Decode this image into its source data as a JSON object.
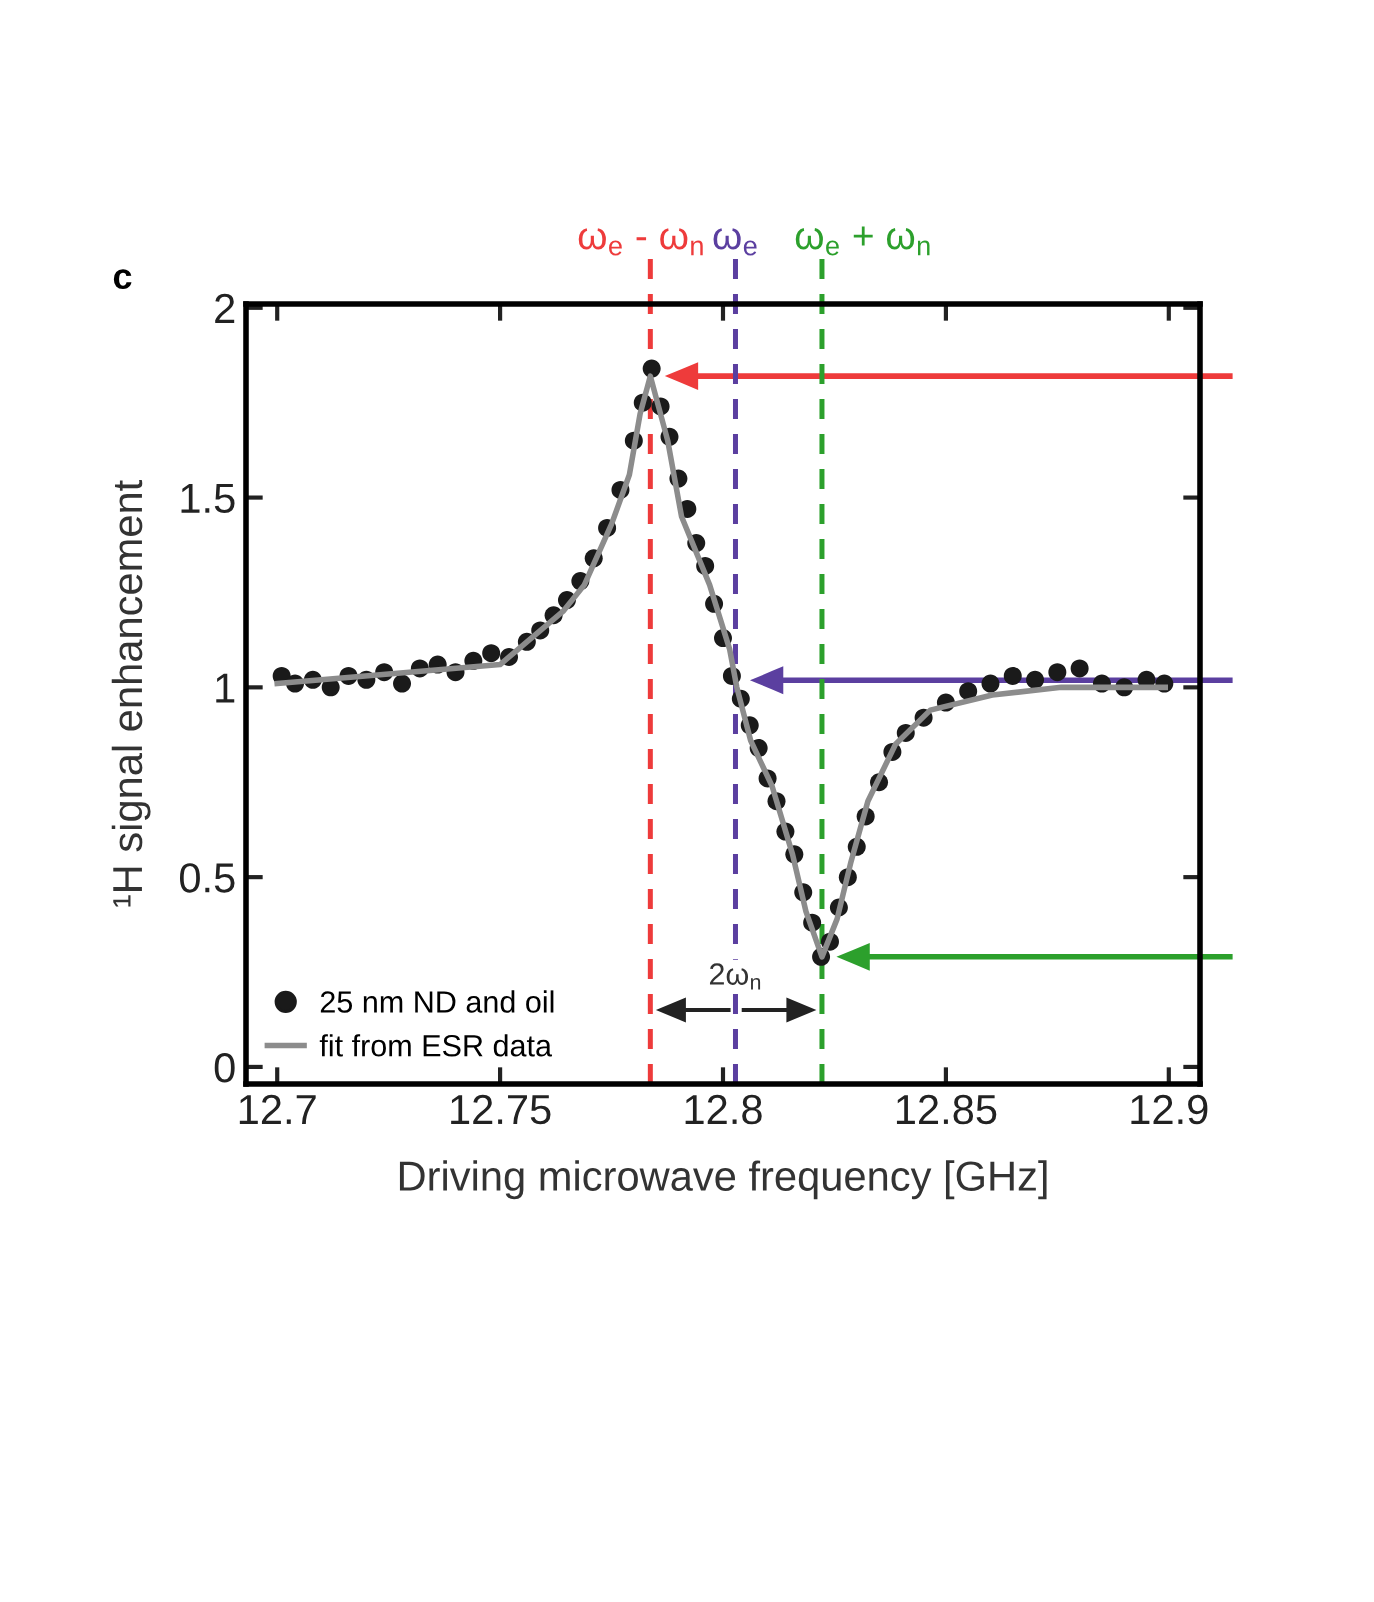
{
  "chart_data": {
    "type": "scatter",
    "xlabel": "Driving microwave frequency [GHz]",
    "ylabel": "¹H signal enhancement",
    "xlim": [
      12.693,
      12.907
    ],
    "ylim": [
      -0.045,
      2.01
    ],
    "xticks": [
      12.7,
      12.75,
      12.8,
      12.85,
      12.9
    ],
    "yticks": [
      0,
      {
        "value": 0.5,
        "label": "0.5"
      },
      1,
      {
        "value": 1.5,
        "label": "1.5"
      },
      2
    ],
    "grid": false,
    "legend": "bottom left",
    "series": [
      {
        "name": "25 nm ND and oil",
        "marker": "circle",
        "color": "#1a1a1a",
        "x": [
          12.701,
          12.704,
          12.708,
          12.712,
          12.716,
          12.72,
          12.724,
          12.728,
          12.732,
          12.736,
          12.74,
          12.744,
          12.748,
          12.752,
          12.756,
          12.759,
          12.762,
          12.765,
          12.768,
          12.771,
          12.774,
          12.777,
          12.78,
          12.782,
          12.784,
          12.786,
          12.788,
          12.79,
          12.792,
          12.794,
          12.796,
          12.798,
          12.8,
          12.802,
          12.804,
          12.806,
          12.808,
          12.81,
          12.812,
          12.814,
          12.816,
          12.818,
          12.82,
          12.822,
          12.824,
          12.826,
          12.828,
          12.83,
          12.832,
          12.835,
          12.838,
          12.841,
          12.845,
          12.85,
          12.855,
          12.86,
          12.865,
          12.87,
          12.875,
          12.88,
          12.885,
          12.89,
          12.895,
          12.899
        ],
        "values": [
          1.03,
          1.01,
          1.02,
          1.0,
          1.03,
          1.02,
          1.04,
          1.01,
          1.05,
          1.06,
          1.04,
          1.07,
          1.09,
          1.08,
          1.12,
          1.15,
          1.19,
          1.23,
          1.28,
          1.34,
          1.42,
          1.52,
          1.65,
          1.75,
          1.84,
          1.74,
          1.66,
          1.55,
          1.47,
          1.38,
          1.32,
          1.22,
          1.13,
          1.03,
          0.97,
          0.9,
          0.84,
          0.76,
          0.7,
          0.62,
          0.56,
          0.46,
          0.38,
          0.29,
          0.33,
          0.42,
          0.5,
          0.58,
          0.66,
          0.75,
          0.83,
          0.88,
          0.92,
          0.96,
          0.99,
          1.01,
          1.03,
          1.02,
          1.04,
          1.05,
          1.01,
          1.0,
          1.02,
          1.01
        ]
      },
      {
        "name": "fit from ESR data",
        "type": "line",
        "color": "#8c8c8c",
        "x": [
          12.7,
          12.75,
          12.7641,
          12.7689,
          12.775,
          12.779,
          12.7814,
          12.7837,
          12.7876,
          12.7907,
          12.797,
          12.8015,
          12.8031,
          12.8062,
          12.811,
          12.8156,
          12.8186,
          12.8222,
          12.8256,
          12.8287,
          12.8325,
          12.8387,
          12.8465,
          12.8604,
          12.8759,
          12.8992
        ],
        "values": [
          1.01,
          1.06,
          1.2,
          1.27,
          1.43,
          1.56,
          1.72,
          1.82,
          1.65,
          1.45,
          1.27,
          1.1,
          1.0,
          0.86,
          0.74,
          0.56,
          0.41,
          0.29,
          0.39,
          0.54,
          0.7,
          0.85,
          0.94,
          0.98,
          1.0,
          1.0
        ]
      }
    ],
    "ref_lines": [
      {
        "axis": "x",
        "value": 12.7837,
        "label": "ω$_{e}$ - ω$_{n}$",
        "color": "#ee3b3b",
        "line_style": "dashed"
      },
      {
        "axis": "x",
        "value": 12.8028,
        "label": "ω$_{e}$",
        "color": "#5b3fa0",
        "line_style": "dashed"
      },
      {
        "axis": "x",
        "value": 12.8222,
        "label": "ω$_{e}$ + ω$_{n}$",
        "color": "#2ca02c",
        "line_style": "dashed"
      }
    ],
    "annotations": [
      "c",
      {
        "text": "2ω$_{n}$",
        "x": 12.8028,
        "y": 0.15
      }
    ]
  }
}
